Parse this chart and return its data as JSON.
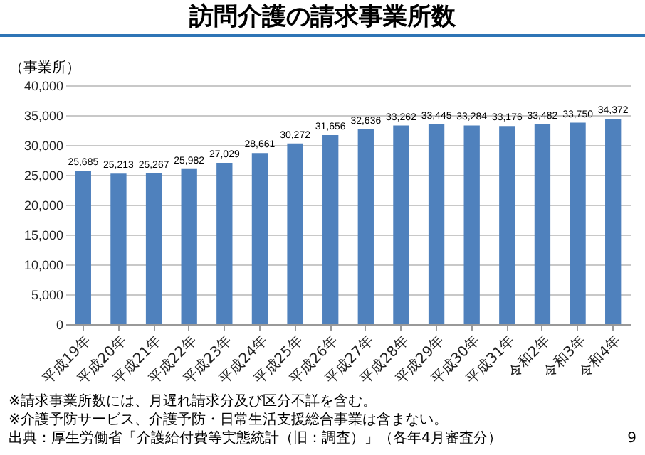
{
  "chart_data": {
    "type": "bar",
    "title": "訪問介護の請求事業所数",
    "ylabel": "（事業所）",
    "categories": [
      "平成19年",
      "平成20年",
      "平成21年",
      "平成22年",
      "平成23年",
      "平成24年",
      "平成25年",
      "平成26年",
      "平成27年",
      "平成28年",
      "平成29年",
      "平成30年",
      "平成31年",
      "令和2年",
      "令和3年",
      "令和4年"
    ],
    "values": [
      25685,
      25213,
      25267,
      25982,
      27029,
      28661,
      30272,
      31656,
      32636,
      33262,
      33445,
      33284,
      33176,
      33482,
      33750,
      34372
    ],
    "value_labels": [
      "25,685",
      "25,213",
      "25,267",
      "25,982",
      "27,029",
      "28,661",
      "30,272",
      "31,656",
      "32,636",
      "33,262",
      "33,445",
      "33,284",
      "33,176",
      "33,482",
      "33,750",
      "34,372"
    ],
    "color": "#4f81bd",
    "ylim": [
      0,
      40000
    ],
    "yticks": [
      0,
      {
        "value": 5000,
        "label": "5,000"
      },
      {
        "value": 10000,
        "label": "10,000"
      },
      {
        "value": 15000,
        "label": "15,000"
      },
      {
        "value": 20000,
        "label": "20,000"
      },
      {
        "value": 25000,
        "label": "25,000"
      },
      {
        "value": 30000,
        "label": "30,000"
      },
      {
        "value": 35000,
        "label": "35,000"
      },
      {
        "value": 40000,
        "label": "40,000"
      }
    ],
    "grid": "y",
    "annotations": [
      "※請求事業所数には、月遅れ請求分及び区分不詳を含む。",
      "※介護予防サービス、介護予防・日常生活支援総合事業は含まない。",
      "出典：厚生労働省「介護給付費等実態統計（旧：調査）」（各年4月審査分）",
      "9"
    ]
  }
}
